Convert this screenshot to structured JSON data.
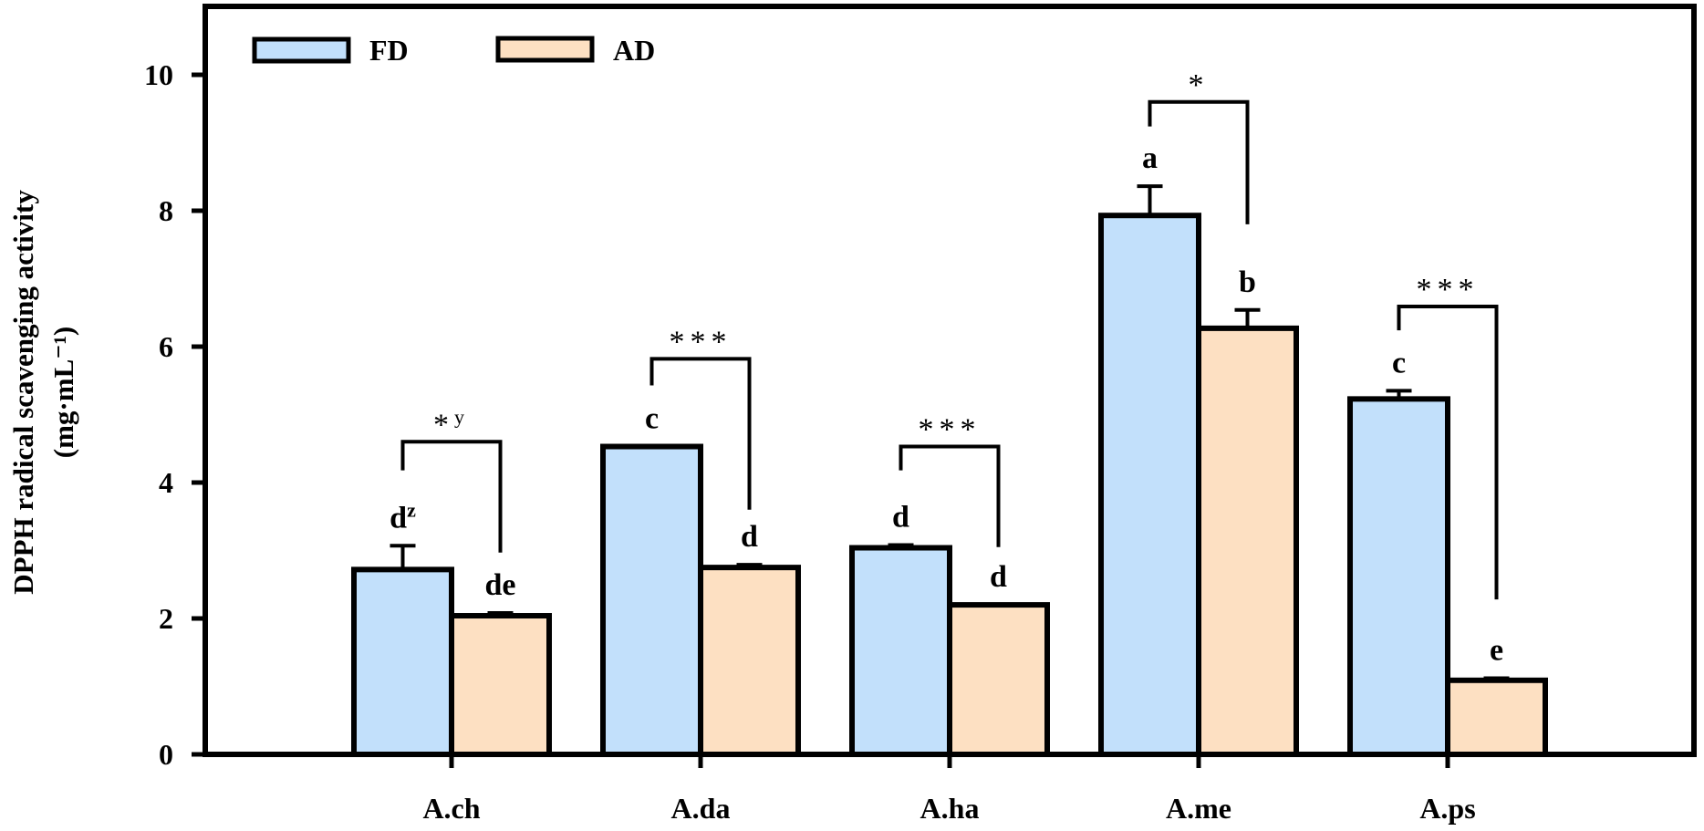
{
  "chart_data": {
    "type": "bar",
    "title": "",
    "xlabel": "",
    "ylabel": "DPPH radical scavenging activity",
    "ylabel_units": "(mg·mL⁻¹)",
    "ylim": [
      0,
      10.9
    ],
    "yticks": [
      0,
      2,
      4,
      6,
      8,
      10
    ],
    "grid": false,
    "legend_position": "top-left",
    "categories": [
      "A.ch",
      "A.da",
      "A.ha",
      "A.me",
      "A.ps"
    ],
    "series": [
      {
        "name": "FD",
        "color": "#c2e0fb",
        "values": [
          2.72,
          4.53,
          3.04,
          7.93,
          5.23
        ],
        "errors": [
          0.35,
          0.0,
          0.04,
          0.43,
          0.12
        ],
        "letters": [
          "d",
          "c",
          "d",
          "a",
          "c"
        ]
      },
      {
        "name": "AD",
        "color": "#fde0c2",
        "values": [
          2.04,
          2.75,
          2.2,
          6.27,
          1.09
        ],
        "errors": [
          0.04,
          0.04,
          0.0,
          0.27,
          0.03
        ],
        "letters": [
          "de",
          "d",
          "d",
          "b",
          "e"
        ]
      }
    ],
    "letter_superscripts": {
      "A.ch": "z"
    },
    "significance": [
      {
        "category": "A.ch",
        "label": "*",
        "sup": "y",
        "top": 4.6,
        "left_end": 4.18,
        "right_end": 2.97
      },
      {
        "category": "A.da",
        "label": "***",
        "sup": "",
        "top": 5.82,
        "left_end": 5.43,
        "right_end": 3.6
      },
      {
        "category": "A.ha",
        "label": "***",
        "sup": "",
        "top": 4.53,
        "left_end": 4.18,
        "right_end": 3.05
      },
      {
        "category": "A.me",
        "label": "*",
        "sup": "",
        "top": 9.6,
        "left_end": 9.24,
        "right_end": 7.8
      },
      {
        "category": "A.ps",
        "label": "***",
        "sup": "",
        "top": 6.59,
        "left_end": 6.24,
        "right_end": 2.28
      }
    ]
  }
}
